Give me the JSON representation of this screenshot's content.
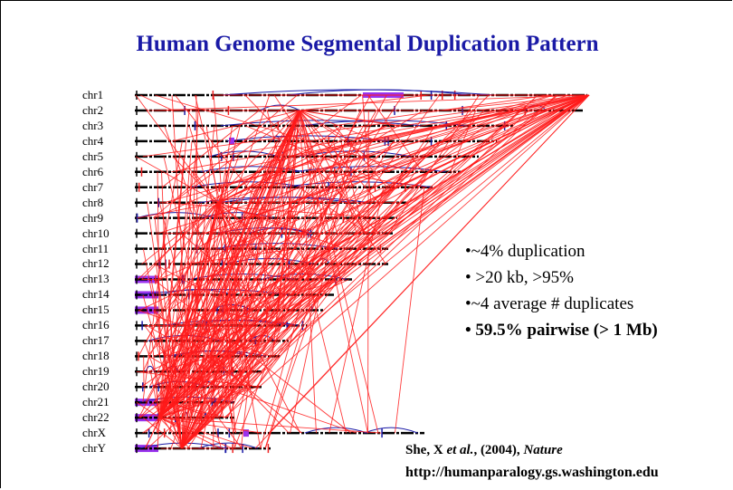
{
  "header": {
    "title": "Human Genome Segmental Duplication Pattern"
  },
  "chromosomes": [
    "chr1",
    "chr2",
    "chr3",
    "chr4",
    "chr5",
    "chr6",
    "chr7",
    "chr8",
    "chr9",
    "chr10",
    "chr11",
    "chr12",
    "chr13",
    "chr14",
    "chr15",
    "chr16",
    "chr17",
    "chr18",
    "chr19",
    "chr20",
    "chr21",
    "chr22",
    "chrX",
    "chrY"
  ],
  "bullets": [
    "•~4% duplication",
    "• >20 kb, >95%",
    "•~4 average # duplicates",
    "• 59.5% pairwise (> 1 Mb)"
  ],
  "citation": {
    "authors": "She, X ",
    "etal": "et al.",
    "year": ", (2004), ",
    "journal": "Nature"
  },
  "url": "http://humanparalogy.gs.washington.edu"
}
